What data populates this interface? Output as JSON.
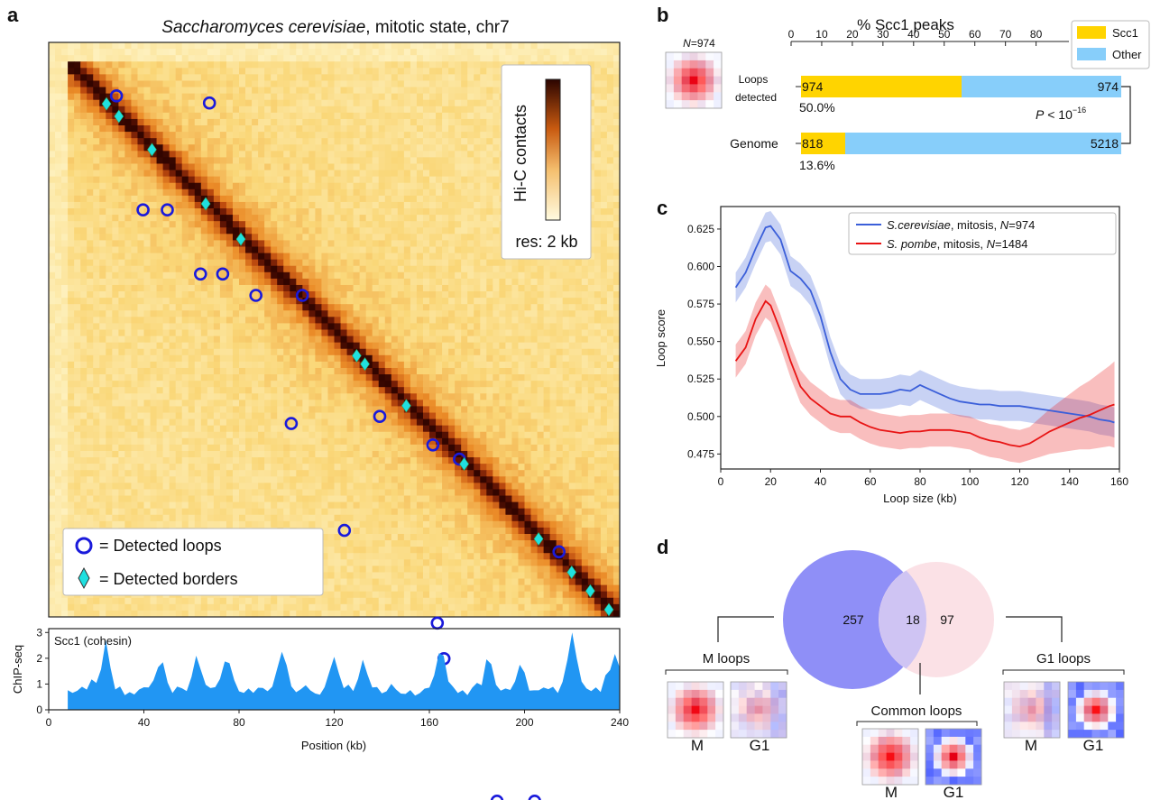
{
  "panel_letters": {
    "a": "a",
    "b": "b",
    "c": "c",
    "d": "d"
  },
  "panel_a": {
    "title_species": "Saccharomyces cerevisiae",
    "title_rest": ", mitotic state, chr7",
    "colorbar_label": "Hi-C contacts",
    "resolution": "res: 2 kb",
    "legend_loops": "= Detected loops",
    "legend_borders": "= Detected borders",
    "colors": {
      "loop": "#1a1adb",
      "border": "#20e0e0",
      "low": "#fff8c8",
      "mid": "#e07818",
      "high": "#3a0800"
    },
    "loops_kb": [
      [
        29,
        7
      ],
      [
        71,
        8
      ],
      [
        41,
        23
      ],
      [
        52,
        23
      ],
      [
        67,
        32
      ],
      [
        77,
        32
      ],
      [
        92,
        35
      ],
      [
        113,
        35
      ],
      [
        108,
        53
      ],
      [
        148,
        52
      ],
      [
        174,
        81
      ],
      [
        132,
        68
      ],
      [
        172,
        56
      ],
      [
        184,
        58
      ],
      [
        229,
        71
      ],
      [
        218,
        106
      ],
      [
        201,
        106
      ],
      [
        177,
        86
      ]
    ],
    "borders_kb": [
      7,
      13,
      29,
      55,
      72,
      128,
      132,
      152,
      180,
      216,
      232,
      241,
      250
    ],
    "track": {
      "label": "Scc1 (cohesin)",
      "ylabel": "ChIP-seq",
      "xlabel": "Position (kb)",
      "x_ticks": [
        "0",
        "40",
        "80",
        "120",
        "160",
        "200",
        "240"
      ],
      "y_ticks": [
        "0",
        "1",
        "2",
        "3"
      ],
      "color": "#2196f3"
    }
  },
  "panel_b": {
    "title": "% Scc1 peaks",
    "n_label": "N=974",
    "x_ticks": [
      "0",
      "10",
      "20",
      "30",
      "40",
      "50",
      "60",
      "70",
      "80"
    ],
    "legend": [
      {
        "name": "Scc1",
        "color": "#ffd400"
      },
      {
        "name": "Other",
        "color": "#87cefa"
      }
    ],
    "rows": [
      {
        "label": "Loops\ndetected",
        "label1": "Loops",
        "label2": "detected",
        "left_value": "974",
        "right_value": "974",
        "percent": "50.0%"
      },
      {
        "label1": "Genome",
        "label2": "",
        "left_value": "818",
        "right_value": "5218",
        "percent": "13.6%"
      }
    ],
    "pvalue_prefix": "P",
    "pvalue_text": " < 10",
    "pvalue_exp": "−16"
  },
  "panel_c": {
    "ylabel": "Loop score",
    "xlabel": "Loop size (kb)",
    "legend": [
      {
        "species": "S.cerevisiae",
        "rest": ", mitosis, ",
        "n": "N=974",
        "color": "#3b5fd9"
      },
      {
        "species": "S. pombe",
        "rest": ", mitosis, ",
        "n": "N=1484",
        "color": "#e81414"
      }
    ]
  },
  "chart_data": {
    "type": "line",
    "xlabel": "Loop size (kb)",
    "ylabel": "Loop score",
    "xlim": [
      0,
      160
    ],
    "ylim": [
      0.465,
      0.64
    ],
    "x_ticks": [
      0,
      20,
      40,
      60,
      80,
      100,
      120,
      140,
      160
    ],
    "y_ticks": [
      0.475,
      0.5,
      0.525,
      0.55,
      0.575,
      0.6,
      0.625
    ],
    "x": [
      6,
      10,
      14,
      18,
      20,
      24,
      28,
      32,
      36,
      40,
      44,
      48,
      52,
      56,
      60,
      64,
      68,
      72,
      76,
      80,
      84,
      88,
      92,
      96,
      100,
      104,
      108,
      112,
      116,
      120,
      124,
      128,
      132,
      136,
      140,
      144,
      148,
      152,
      156,
      158
    ],
    "series": [
      {
        "name": "S.cerevisiae, mitosis, N=974",
        "color": "#3b5fd9",
        "values": [
          0.586,
          0.596,
          0.612,
          0.626,
          0.627,
          0.618,
          0.597,
          0.592,
          0.584,
          0.567,
          0.543,
          0.525,
          0.518,
          0.515,
          0.515,
          0.515,
          0.516,
          0.518,
          0.517,
          0.521,
          0.518,
          0.515,
          0.512,
          0.51,
          0.509,
          0.508,
          0.508,
          0.507,
          0.507,
          0.507,
          0.506,
          0.505,
          0.504,
          0.503,
          0.502,
          0.501,
          0.5,
          0.498,
          0.497,
          0.496
        ],
        "band": 0.01
      },
      {
        "name": "S. pombe, mitosis, N=1484",
        "color": "#e81414",
        "values": [
          0.537,
          0.546,
          0.565,
          0.577,
          0.574,
          0.557,
          0.537,
          0.52,
          0.512,
          0.507,
          0.502,
          0.5,
          0.5,
          0.496,
          0.493,
          0.491,
          0.49,
          0.489,
          0.49,
          0.49,
          0.491,
          0.491,
          0.491,
          0.49,
          0.489,
          0.486,
          0.484,
          0.483,
          0.481,
          0.48,
          0.482,
          0.486,
          0.49,
          0.493,
          0.496,
          0.499,
          0.501,
          0.504,
          0.507,
          0.508
        ],
        "band": 0.011
      }
    ]
  },
  "panel_d": {
    "venn_m_only": "257",
    "venn_common": "18",
    "venn_g1_only": "97",
    "m_group": "M loops",
    "common_group": "Common loops",
    "g1_group": "G1 loops",
    "label_m": "M",
    "label_g1": "G1",
    "colors": {
      "m": "#8f8ff7",
      "g1": "#fbe1e6",
      "overlap": "#cfc4f3"
    }
  }
}
